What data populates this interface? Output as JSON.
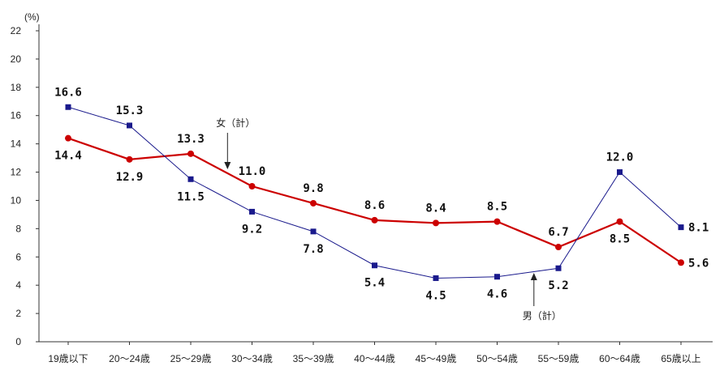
{
  "chart_data": {
    "type": "line",
    "unit": "(%)",
    "categories": [
      "19歳以下",
      "20～24歳",
      "25～29歳",
      "30～34歳",
      "35～39歳",
      "40～44歳",
      "45～49歳",
      "50～54歳",
      "55～59歳",
      "60～64歳",
      "65歳以上"
    ],
    "ylim": [
      0,
      22
    ],
    "yticks": [
      0,
      2,
      4,
      6,
      8,
      10,
      12,
      14,
      16,
      18,
      20,
      22
    ],
    "grid": false,
    "series": [
      {
        "name": "男（計）",
        "color": "#1a1a8c",
        "marker": "square",
        "values": [
          16.6,
          15.3,
          11.5,
          9.2,
          7.8,
          5.4,
          4.5,
          4.6,
          5.2,
          12.0,
          8.1
        ],
        "labels": [
          "16.6",
          "15.3",
          "11.5",
          "9.2",
          "7.8",
          "5.4",
          "4.5",
          "4.6",
          "5.2",
          "12.0",
          "8.1"
        ]
      },
      {
        "name": "女（計）",
        "color": "#cc0000",
        "marker": "circle",
        "values": [
          14.4,
          12.9,
          13.3,
          11.0,
          9.8,
          8.6,
          8.4,
          8.5,
          6.7,
          8.5,
          5.6
        ],
        "labels": [
          "14.4",
          "12.9",
          "13.3",
          "11.0",
          "9.8",
          "8.6",
          "8.4",
          "8.5",
          "6.7",
          "8.5",
          "5.6"
        ]
      }
    ]
  }
}
